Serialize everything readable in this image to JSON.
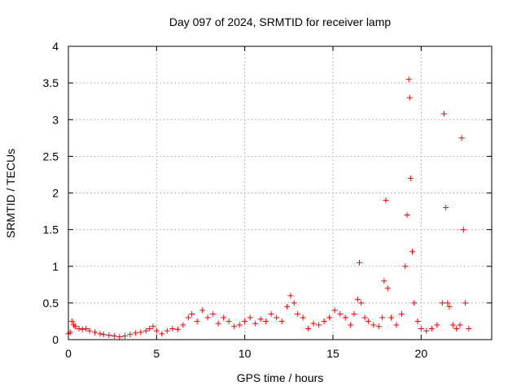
{
  "chart_data": {
    "type": "scatter",
    "title": "Day 097 of 2024, SRMTID for receiver lamp",
    "xlabel": "GPS time / hours",
    "ylabel": "SRMTID / TECUs",
    "xlim": [
      0,
      24
    ],
    "ylim": [
      0,
      4
    ],
    "xticks": [
      0,
      5,
      10,
      15,
      20
    ],
    "xtick_labels": [
      "0",
      "5",
      "10",
      "15",
      "20"
    ],
    "yticks": [
      0,
      0.5,
      1,
      1.5,
      2,
      2.5,
      3,
      3.5,
      4
    ],
    "ytick_labels": [
      "0",
      "0.5",
      "1",
      "1.5",
      "2",
      "2.5",
      "3",
      "3.5",
      "4"
    ],
    "grid": true,
    "marker": "+",
    "marker_color": "#ff0000",
    "series": [
      {
        "name": "SRMTID",
        "x": [
          0.0,
          0.1,
          0.2,
          0.3,
          0.4,
          0.6,
          0.8,
          1.0,
          1.2,
          1.5,
          1.8,
          2.0,
          2.3,
          2.6,
          2.9,
          3.2,
          3.5,
          3.8,
          4.1,
          4.4,
          4.6,
          4.8,
          5.0,
          5.3,
          5.6,
          5.9,
          6.2,
          6.5,
          6.8,
          7.0,
          7.3,
          7.6,
          7.9,
          8.2,
          8.5,
          8.8,
          9.1,
          9.4,
          9.7,
          10.0,
          10.3,
          10.6,
          10.9,
          11.2,
          11.5,
          11.8,
          12.1,
          12.4,
          12.6,
          12.8,
          13.0,
          13.3,
          13.6,
          13.9,
          14.2,
          14.5,
          14.8,
          15.1,
          15.4,
          15.7,
          16.0,
          16.2,
          16.4,
          16.5,
          16.6,
          16.8,
          17.0,
          17.3,
          17.6,
          17.8,
          17.9,
          18.0,
          18.1,
          18.3,
          18.6,
          18.9,
          19.1,
          19.2,
          19.3,
          19.35,
          19.4,
          19.5,
          19.6,
          19.8,
          20.0,
          20.3,
          20.6,
          20.9,
          21.2,
          21.3,
          21.4,
          21.5,
          21.6,
          21.8,
          22.0,
          22.2,
          22.3,
          22.4,
          22.5,
          22.7
        ],
        "y": [
          0.08,
          0.1,
          0.25,
          0.2,
          0.18,
          0.15,
          0.14,
          0.15,
          0.12,
          0.1,
          0.08,
          0.07,
          0.06,
          0.05,
          0.04,
          0.05,
          0.07,
          0.09,
          0.1,
          0.12,
          0.15,
          0.18,
          0.12,
          0.08,
          0.12,
          0.15,
          0.14,
          0.2,
          0.3,
          0.35,
          0.25,
          0.4,
          0.3,
          0.35,
          0.22,
          0.3,
          0.25,
          0.18,
          0.2,
          0.25,
          0.3,
          0.22,
          0.28,
          0.25,
          0.35,
          0.3,
          0.25,
          0.45,
          0.6,
          0.5,
          0.35,
          0.3,
          0.15,
          0.22,
          0.2,
          0.25,
          0.3,
          0.4,
          0.35,
          0.3,
          0.2,
          0.35,
          0.55,
          1.05,
          0.5,
          0.3,
          0.25,
          0.2,
          0.18,
          0.3,
          0.8,
          1.9,
          0.7,
          0.3,
          0.2,
          0.35,
          1.0,
          1.7,
          3.55,
          3.3,
          2.2,
          1.2,
          0.5,
          0.25,
          0.15,
          0.12,
          0.15,
          0.2,
          0.5,
          3.08,
          1.8,
          0.5,
          0.45,
          0.2,
          0.15,
          0.2,
          2.75,
          1.5,
          0.5,
          0.15
        ]
      }
    ]
  }
}
